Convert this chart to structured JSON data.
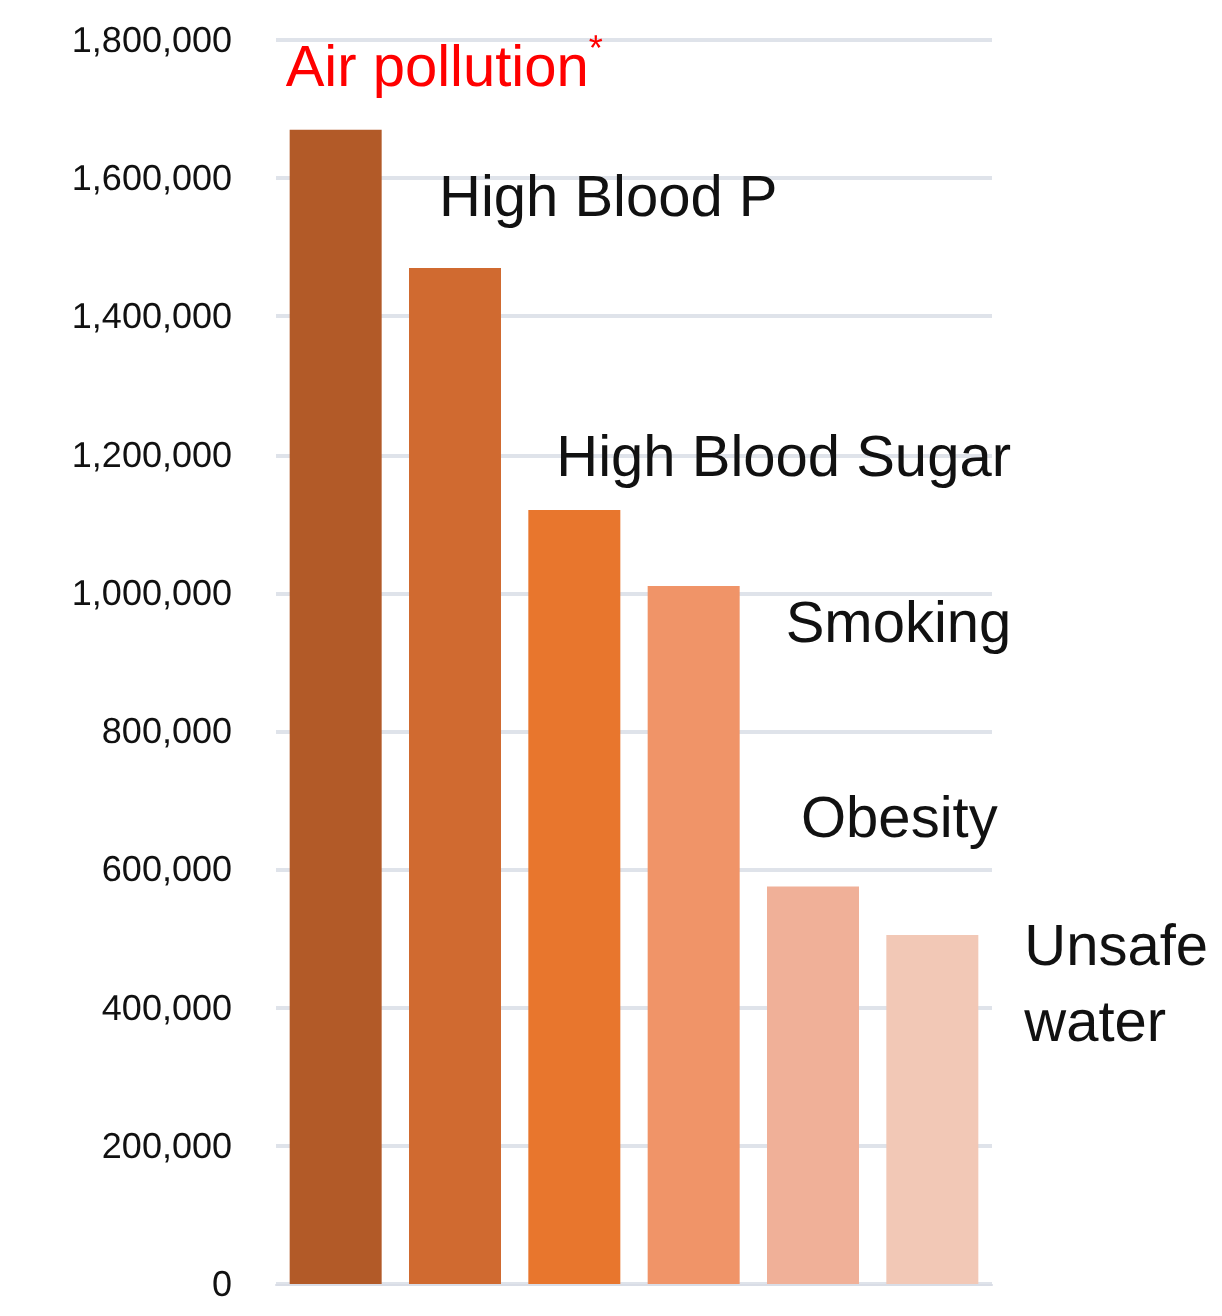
{
  "chart_data": {
    "type": "bar",
    "categories": [
      null,
      null,
      null,
      null,
      null,
      null
    ],
    "annotations": [
      "Air pollution$^{*}$",
      "High Blood P",
      "High Blood Sugar",
      "Smoking",
      "Obesity",
      "Unsafe water"
    ],
    "values": [
      1670000,
      1470000,
      1120000,
      1010000,
      575000,
      505000
    ],
    "colors": [
      "#b25a28",
      "#d06a30",
      "#e8762d",
      "#f09468",
      "#f0b098",
      "#f2c8b6"
    ],
    "ylim": [
      0,
      1800000
    ],
    "yticks": [
      0,
      {
        "value": 200000,
        "label": "200,000"
      },
      {
        "value": 400000,
        "label": "400,000"
      },
      {
        "value": 600000,
        "label": "600,000"
      },
      {
        "value": 800000,
        "label": "800,000"
      },
      {
        "value": 1000000,
        "label": "1,000,000"
      },
      {
        "value": 1200000,
        "label": "1,200,000"
      },
      {
        "value": 1400000,
        "label": "1,400,000"
      },
      {
        "value": 1600000,
        "label": "1,600,000"
      },
      {
        "value": 1800000,
        "label": "1,800,000"
      }
    ],
    "grid": "y"
  }
}
